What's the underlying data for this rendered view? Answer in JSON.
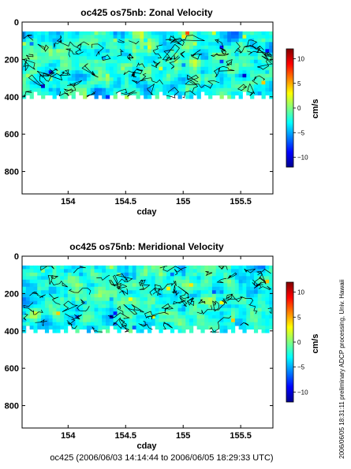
{
  "chart_data": [
    {
      "type": "heatmap",
      "title": "oc425 os75nb: Zonal Velocity",
      "xlabel": "cday",
      "ylabel": "",
      "xlim": [
        153.6,
        155.78
      ],
      "ylim": [
        920,
        0
      ],
      "x_ticks": [
        154,
        154.5,
        155,
        155.5
      ],
      "x_tick_labels": [
        "154",
        "154.5",
        "155",
        "155.5"
      ],
      "y_ticks": [
        0,
        200,
        400,
        600,
        800
      ],
      "y_tick_labels": [
        "0",
        "200",
        "400",
        "600",
        "800"
      ],
      "data_extent": {
        "x": [
          153.6,
          155.78
        ],
        "depth": [
          50,
          410
        ]
      },
      "colorbar": {
        "label": "cm/s",
        "range": [
          -12,
          12
        ],
        "ticks": [
          -10,
          -5,
          0,
          5,
          10
        ],
        "tick_labels": [
          "−10",
          "−5",
          "0",
          "5",
          "10"
        ]
      },
      "contours": true
    },
    {
      "type": "heatmap",
      "title": "oc425 os75nb: Meridional Velocity",
      "xlabel": "cday",
      "ylabel": "",
      "xlim": [
        153.6,
        155.78
      ],
      "ylim": [
        920,
        0
      ],
      "x_ticks": [
        154,
        154.5,
        155,
        155.5
      ],
      "x_tick_labels": [
        "154",
        "154.5",
        "155",
        "155.5"
      ],
      "y_ticks": [
        0,
        200,
        400,
        600,
        800
      ],
      "y_tick_labels": [
        "0",
        "200",
        "400",
        "600",
        "800"
      ],
      "data_extent": {
        "x": [
          153.6,
          155.78
        ],
        "depth": [
          50,
          410
        ]
      },
      "colorbar": {
        "label": "cm/s",
        "range": [
          -12,
          12
        ],
        "ticks": [
          -10,
          -5,
          0,
          5,
          10
        ],
        "tick_labels": [
          "−10",
          "−5",
          "0",
          "5",
          "10"
        ]
      },
      "contours": true
    }
  ],
  "footer": "oc425 (2006/06/03 14:14:44 to 2006/06/05 18:29:33 UTC)",
  "side_note": "2006/06/05 18:31:11     preliminary ADCP processing,  Univ. Hawaii",
  "colors": {
    "background": "#ffffff",
    "axis": "#000000",
    "contour": "#000000"
  }
}
